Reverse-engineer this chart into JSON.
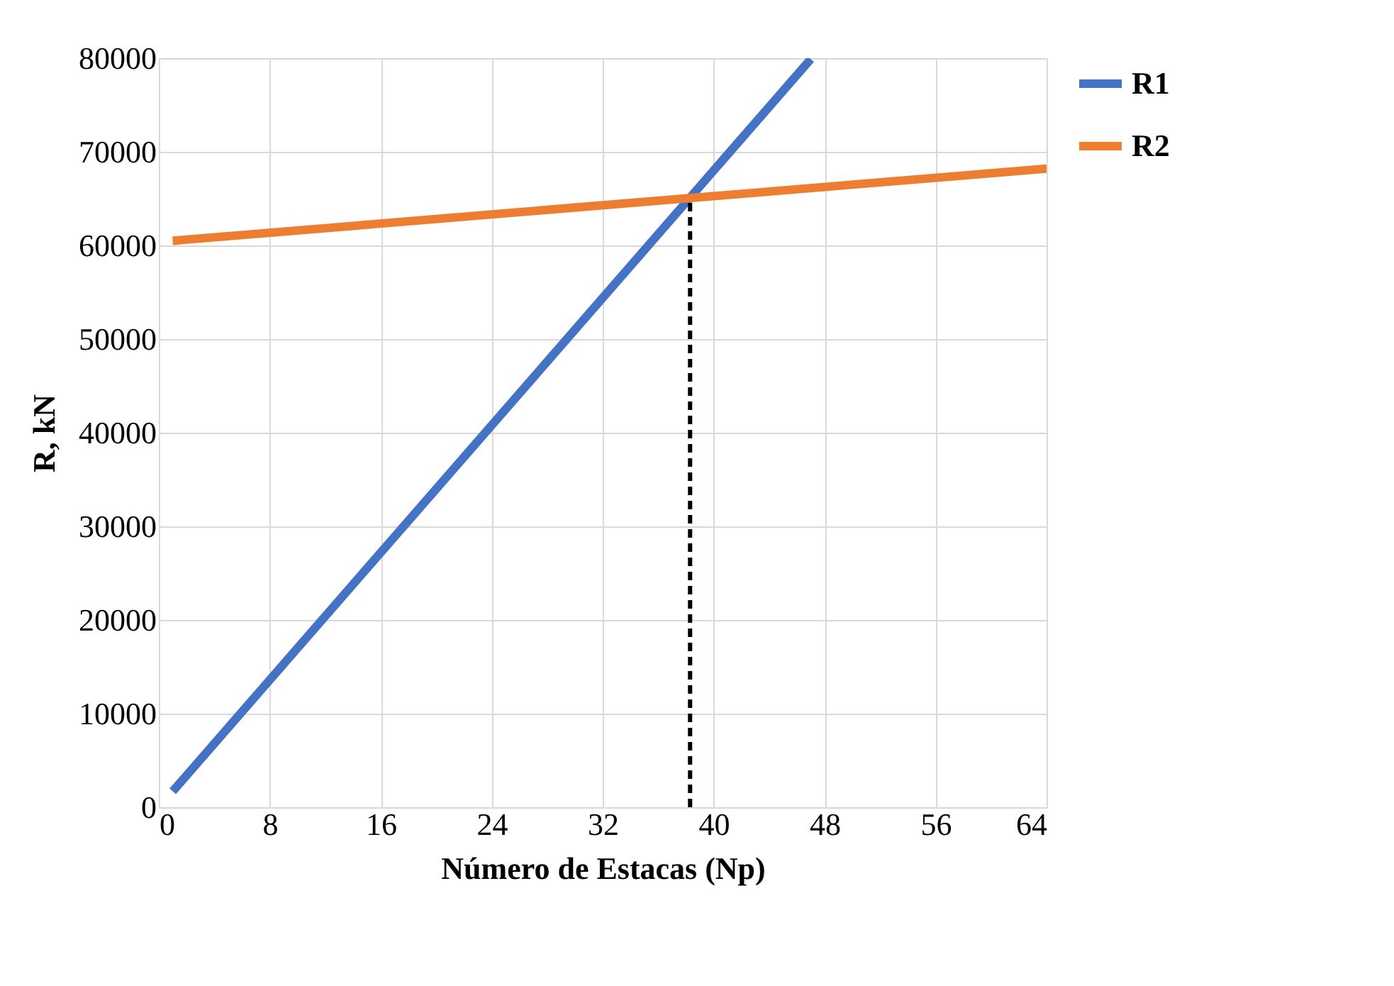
{
  "chart_data": {
    "type": "line",
    "xlabel": "Número de Estacas (Np)",
    "ylabel": "R, kN",
    "xlim": [
      0,
      64
    ],
    "xticks": [
      0,
      8,
      16,
      24,
      32,
      40,
      48,
      56,
      64
    ],
    "ylim": [
      0,
      80000
    ],
    "yticks": [
      0,
      10000,
      20000,
      30000,
      40000,
      50000,
      60000,
      70000,
      80000
    ],
    "grid": true,
    "legend": "right",
    "line_style": "solid",
    "series": [
      {
        "name": "R1",
        "color": "#4472c4",
        "x": [
          1,
          47
        ],
        "values": [
          1700,
          79900
        ]
      },
      {
        "name": "R2",
        "color": "#ed7d31",
        "x": [
          1,
          64
        ],
        "values": [
          60500,
          68200
        ]
      },
      {
        "color": "#000000",
        "x": [
          38.3,
          38.3
        ],
        "values": [
          0,
          65000
        ],
        "line_style": "dashed"
      }
    ]
  }
}
